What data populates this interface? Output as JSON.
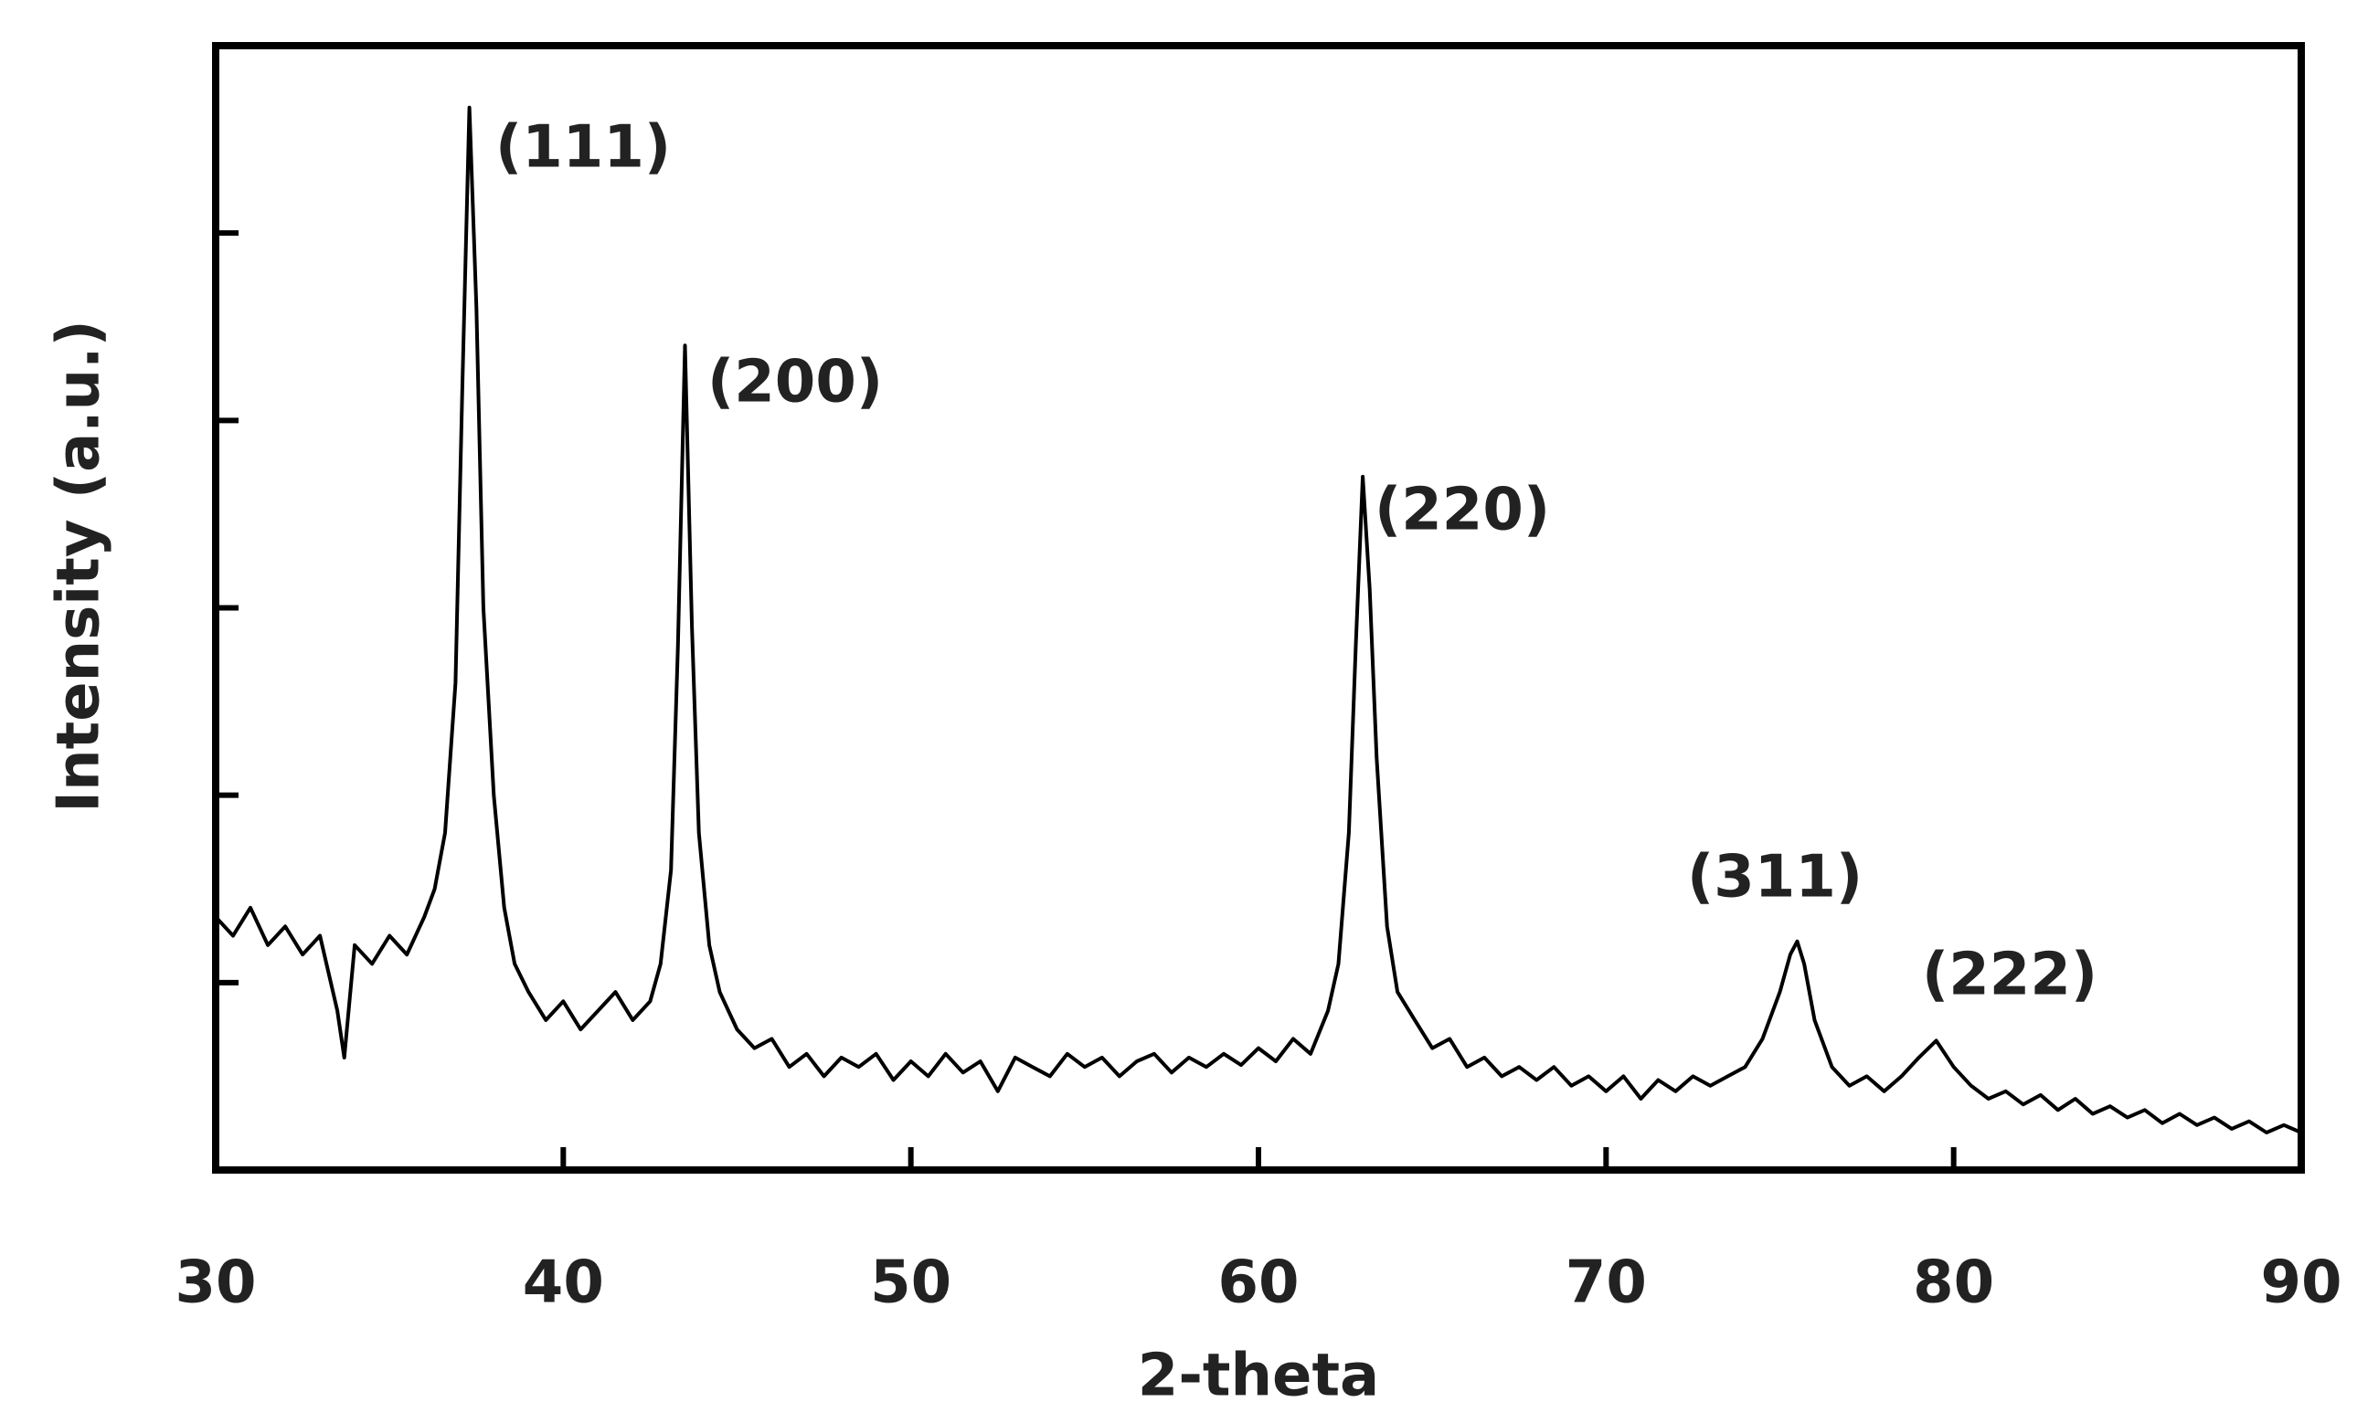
{
  "chart_data": {
    "type": "line",
    "x_label": "2-theta",
    "y_label": "Intensity (a.u.)",
    "xlim": [
      30,
      90
    ],
    "xticks": [
      30,
      40,
      50,
      60,
      70,
      80,
      90
    ],
    "ylim": [
      0,
      6
    ],
    "yticks": [
      1,
      2,
      3,
      4,
      5
    ],
    "ytick_labels": false,
    "annotations": [
      "(111)",
      "(200)",
      "(220)",
      "(311)",
      "(222)"
    ],
    "series": [
      {
        "color": "#000000",
        "x": [
          30,
          30.5,
          31,
          31.5,
          32,
          32.5,
          33,
          33.5,
          33.7,
          34,
          34.5,
          35,
          35.5,
          36,
          36.3,
          36.6,
          36.9,
          37.1,
          37.3,
          37.5,
          37.7,
          38,
          38.3,
          38.6,
          39,
          39.5,
          40,
          40.5,
          41,
          41.5,
          42,
          42.5,
          42.8,
          43.1,
          43.3,
          43.5,
          43.7,
          43.9,
          44.2,
          44.5,
          45,
          45.5,
          46,
          46.5,
          47,
          47.5,
          48,
          48.5,
          49,
          49.5,
          50,
          50.5,
          51,
          51.5,
          52,
          52.5,
          53,
          53.5,
          54,
          54.5,
          55,
          55.5,
          56,
          56.5,
          57,
          57.5,
          58,
          58.5,
          59,
          59.5,
          60,
          60.5,
          61,
          61.5,
          62,
          62.3,
          62.6,
          62.8,
          63,
          63.2,
          63.4,
          63.7,
          64,
          64.5,
          65,
          65.5,
          66,
          66.5,
          67,
          67.5,
          68,
          68.5,
          69,
          69.5,
          70,
          70.5,
          71,
          71.5,
          72,
          72.5,
          73,
          73.5,
          74,
          74.5,
          75,
          75.3,
          75.5,
          75.7,
          76,
          76.5,
          77,
          77.5,
          78,
          78.5,
          79,
          79.5,
          80,
          80.5,
          81,
          81.5,
          82,
          82.5,
          83,
          83.5,
          84,
          84.5,
          85,
          85.5,
          86,
          86.5,
          87,
          87.5,
          88,
          88.5,
          89,
          89.5,
          90
        ],
        "values": [
          1.35,
          1.25,
          1.4,
          1.2,
          1.3,
          1.15,
          1.25,
          0.85,
          0.6,
          1.2,
          1.1,
          1.25,
          1.15,
          1.35,
          1.5,
          1.8,
          2.6,
          4.2,
          5.67,
          4.6,
          3.0,
          2.0,
          1.4,
          1.1,
          0.95,
          0.8,
          0.9,
          0.75,
          0.85,
          0.95,
          0.8,
          0.9,
          1.1,
          1.6,
          2.8,
          4.4,
          2.9,
          1.8,
          1.2,
          0.95,
          0.75,
          0.65,
          0.7,
          0.55,
          0.62,
          0.5,
          0.6,
          0.55,
          0.62,
          0.48,
          0.58,
          0.5,
          0.62,
          0.52,
          0.58,
          0.42,
          0.6,
          0.55,
          0.5,
          0.62,
          0.55,
          0.6,
          0.5,
          0.58,
          0.62,
          0.52,
          0.6,
          0.55,
          0.62,
          0.56,
          0.65,
          0.58,
          0.7,
          0.62,
          0.85,
          1.1,
          1.8,
          2.8,
          3.7,
          3.1,
          2.2,
          1.3,
          0.95,
          0.8,
          0.65,
          0.7,
          0.55,
          0.6,
          0.5,
          0.55,
          0.48,
          0.55,
          0.45,
          0.5,
          0.42,
          0.5,
          0.38,
          0.48,
          0.42,
          0.5,
          0.45,
          0.5,
          0.55,
          0.7,
          0.95,
          1.15,
          1.22,
          1.1,
          0.8,
          0.55,
          0.45,
          0.5,
          0.42,
          0.5,
          0.6,
          0.69,
          0.55,
          0.45,
          0.38,
          0.42,
          0.35,
          0.4,
          0.32,
          0.38,
          0.3,
          0.34,
          0.28,
          0.32,
          0.25,
          0.3,
          0.24,
          0.28,
          0.22,
          0.26,
          0.2,
          0.24,
          0.2
        ]
      }
    ]
  }
}
